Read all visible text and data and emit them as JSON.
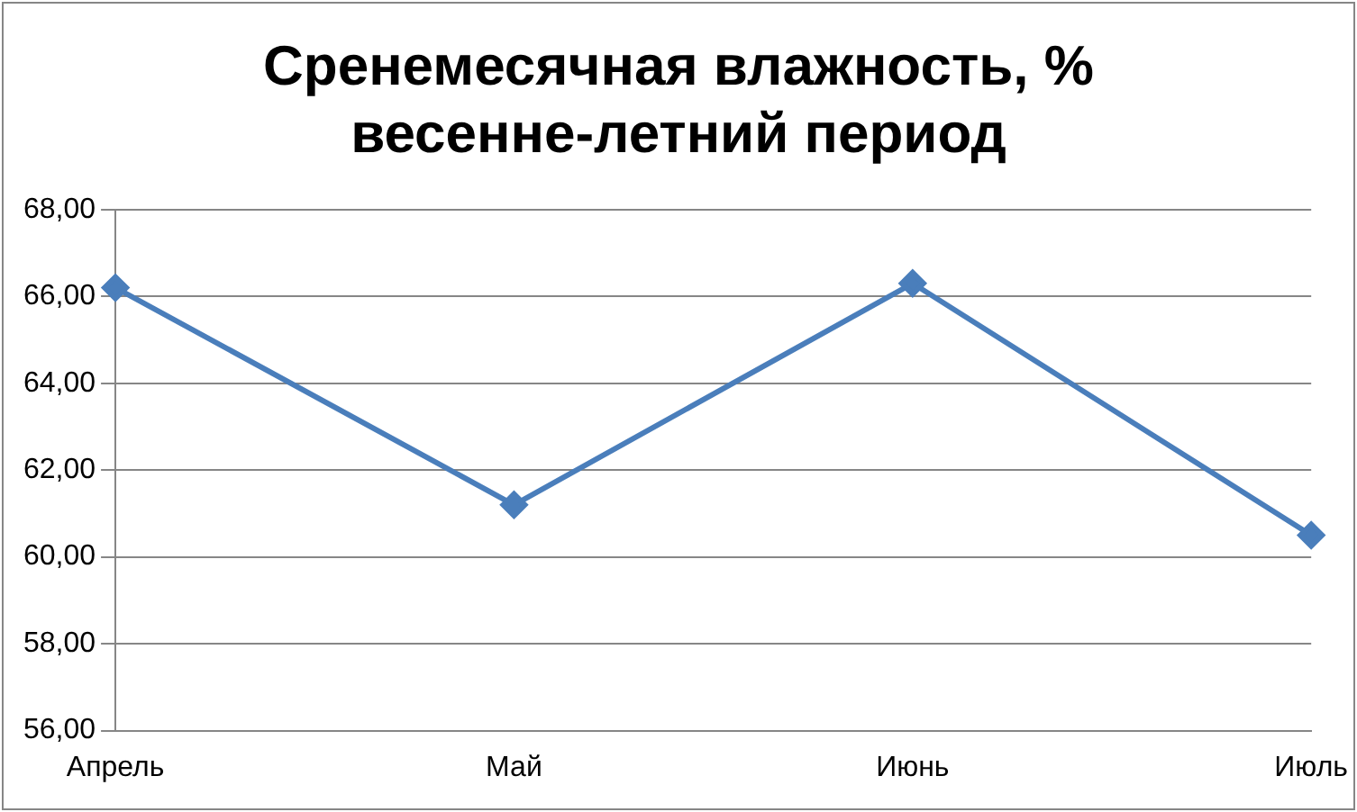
{
  "chart_data": {
    "type": "line",
    "title": "Сренемесячная влажность, %\nвесенне-летний период",
    "categories": [
      "Апрель",
      "Май",
      "Июнь",
      "Июль"
    ],
    "series": [
      {
        "color": "#4a7ebb",
        "values": [
          66.2,
          61.2,
          66.3,
          60.5
        ]
      }
    ],
    "ylim": [
      56,
      68
    ],
    "yticks": [
      {
        "value": 56,
        "label": "56,00"
      },
      {
        "value": 58,
        "label": "58,00"
      },
      {
        "value": 60,
        "label": "60,00"
      },
      {
        "value": 62,
        "label": "62,00"
      },
      {
        "value": 64,
        "label": "64,00"
      },
      {
        "value": 66,
        "label": "66,00"
      },
      {
        "value": 68,
        "label": "68,00"
      }
    ],
    "grid": "y",
    "legend": false,
    "marker": "diamond",
    "line_style": "solid"
  }
}
